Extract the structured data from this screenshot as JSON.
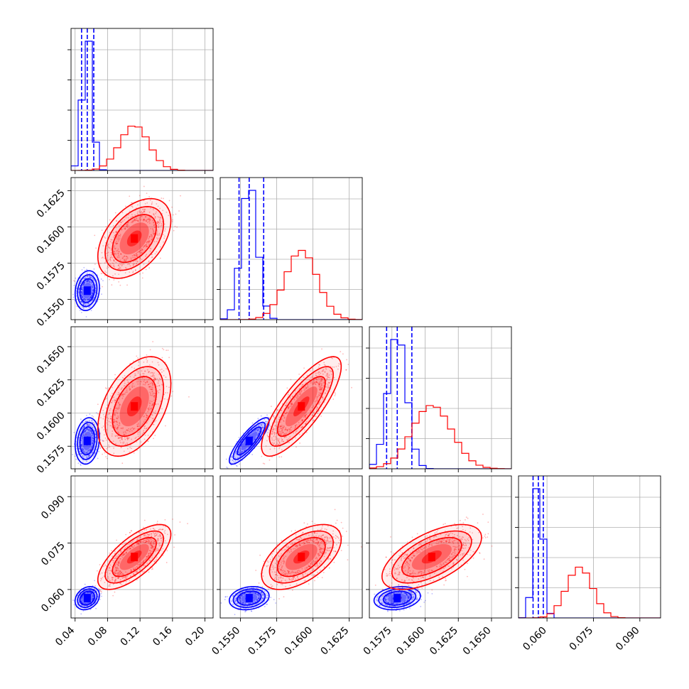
{
  "chart_data": {
    "type": "scatter",
    "subtype": "corner-plot",
    "title": "",
    "grid": true,
    "legend": "none",
    "parameters": [
      {
        "range": [
          0.035,
          0.21
        ],
        "ticks": [
          0.04,
          0.08,
          0.12,
          0.16,
          0.2
        ],
        "tick_labels": [
          "0.04",
          "0.08",
          "0.12",
          "0.16",
          "0.20"
        ]
      },
      {
        "range": [
          0.1536,
          0.1634
        ],
        "ticks": [
          0.155,
          0.1575,
          0.16,
          0.1625
        ],
        "tick_labels": [
          "0.1550",
          "0.1575",
          "0.1600",
          "0.1625"
        ]
      },
      {
        "range": [
          0.1558,
          0.1665
        ],
        "ticks": [
          0.1575,
          0.16,
          0.1625,
          0.165
        ],
        "tick_labels": [
          "0.1575",
          "0.1600",
          "0.1625",
          "0.1650"
        ]
      },
      {
        "range": [
          0.0508,
          0.0967
        ],
        "ticks": [
          0.06,
          0.075,
          0.09
        ],
        "tick_labels": [
          "0.060",
          "0.075",
          "0.090"
        ]
      }
    ],
    "series": [
      {
        "color": "#0000ff",
        "mean": [
          0.055,
          0.1556,
          0.1579,
          0.0572
        ],
        "std": [
          0.006,
          0.00055,
          0.0007,
          0.0015
        ],
        "corr": [
          [
            1,
            0.15,
            0.15,
            0.25
          ],
          [
            0.15,
            1,
            0.85,
            0.2
          ],
          [
            0.15,
            0.85,
            1,
            0.2
          ],
          [
            0.25,
            0.2,
            0.2,
            1
          ]
        ],
        "quantiles": [
          [
            0.048,
            0.055,
            0.063
          ],
          [
            0.1549,
            0.1556,
            0.1566
          ],
          [
            0.1571,
            0.1579,
            0.159
          ],
          [
            0.0555,
            0.0572,
            0.0588
          ]
        ]
      },
      {
        "color": "#ff0000",
        "mean": [
          0.113,
          0.1592,
          0.1605,
          0.0705
        ],
        "std": [
          0.018,
          0.0011,
          0.0015,
          0.0042
        ],
        "corr": [
          [
            1,
            0.45,
            0.45,
            0.7
          ],
          [
            0.45,
            1,
            0.8,
            0.55
          ],
          [
            0.45,
            0.8,
            1,
            0.6
          ],
          [
            0.7,
            0.55,
            0.6,
            1
          ]
        ]
      }
    ]
  }
}
